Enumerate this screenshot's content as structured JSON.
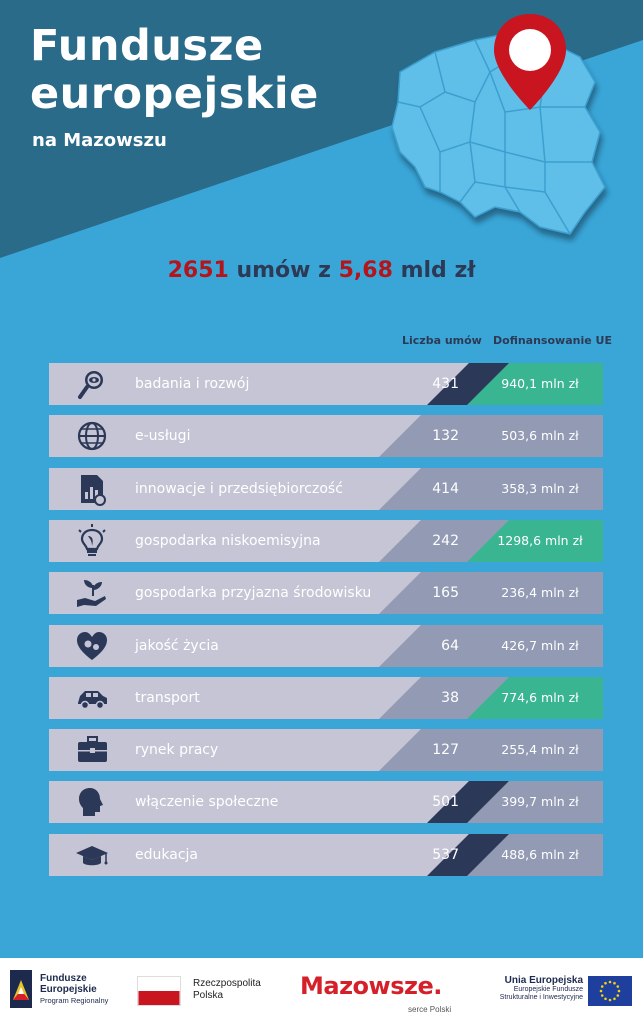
{
  "header": {
    "title_line1": "Fundusze",
    "title_line2": "europejskie",
    "subtitle": "na Mazowszu"
  },
  "summary": {
    "contracts": "2651",
    "middle": " umów z ",
    "amount": "5,68",
    "unit": " mld zł"
  },
  "columns": {
    "count": "Liczba umów",
    "funding": "Dofinansowanie UE"
  },
  "colors": {
    "background": "#3aa6d8",
    "header_dark": "#2b6b8a",
    "row_light": "#c5c5d5",
    "row_medium": "#939ab4",
    "row_dark": "#2c3857",
    "highlight_green": "#3ab591",
    "accent_red": "#b3151b"
  },
  "rows": [
    {
      "icon": "magnifier-eye-icon",
      "label": "badania i rozwój",
      "count": "431",
      "funding": "940,1 mln zł",
      "count_dark": true,
      "funding_green": true
    },
    {
      "icon": "globe-icon",
      "label": "e-usługi",
      "count": "132",
      "funding": "503,6 mln zł",
      "count_dark": false,
      "funding_green": false
    },
    {
      "icon": "document-chart-icon",
      "label": "innowacje i przedsiębiorczość",
      "count": "414",
      "funding": "358,3 mln zł",
      "count_dark": false,
      "funding_green": false
    },
    {
      "icon": "lightbulb-leaf-icon",
      "label": "gospodarka niskoemisyjna",
      "count": "242",
      "funding": "1298,6 mln zł",
      "count_dark": false,
      "funding_green": true
    },
    {
      "icon": "hand-plant-icon",
      "label": "gospodarka przyjazna środowisku",
      "count": "165",
      "funding": "236,4 mln zł",
      "count_dark": false,
      "funding_green": false
    },
    {
      "icon": "heart-gears-icon",
      "label": "jakość życia",
      "count": "64",
      "funding": "426,7 mln zł",
      "count_dark": false,
      "funding_green": false
    },
    {
      "icon": "car-icon",
      "label": "transport",
      "count": "38",
      "funding": "774,6 mln zł",
      "count_dark": false,
      "funding_green": true
    },
    {
      "icon": "briefcase-icon",
      "label": "rynek pracy",
      "count": "127",
      "funding": "255,4 mln zł",
      "count_dark": false,
      "funding_green": false
    },
    {
      "icon": "head-profile-icon",
      "label": "włączenie społeczne",
      "count": "501",
      "funding": "399,7 mln zł",
      "count_dark": true,
      "funding_green": false
    },
    {
      "icon": "graduation-cap-icon",
      "label": "edukacja",
      "count": "537",
      "funding": "488,6 mln zł",
      "count_dark": true,
      "funding_green": false
    }
  ],
  "footer": {
    "fe_line1": "Fundusze",
    "fe_line2": "Europejskie",
    "fe_line3": "Program Regionalny",
    "pl_line1": "Rzeczpospolita",
    "pl_line2": "Polska",
    "mazowsze": "Mazowsze.",
    "mazowsze_sub": "serce Polski",
    "eu_line1": "Unia Europejska",
    "eu_line2": "Europejskie Fundusze",
    "eu_line3": "Strukturalne i Inwestycyjne"
  }
}
